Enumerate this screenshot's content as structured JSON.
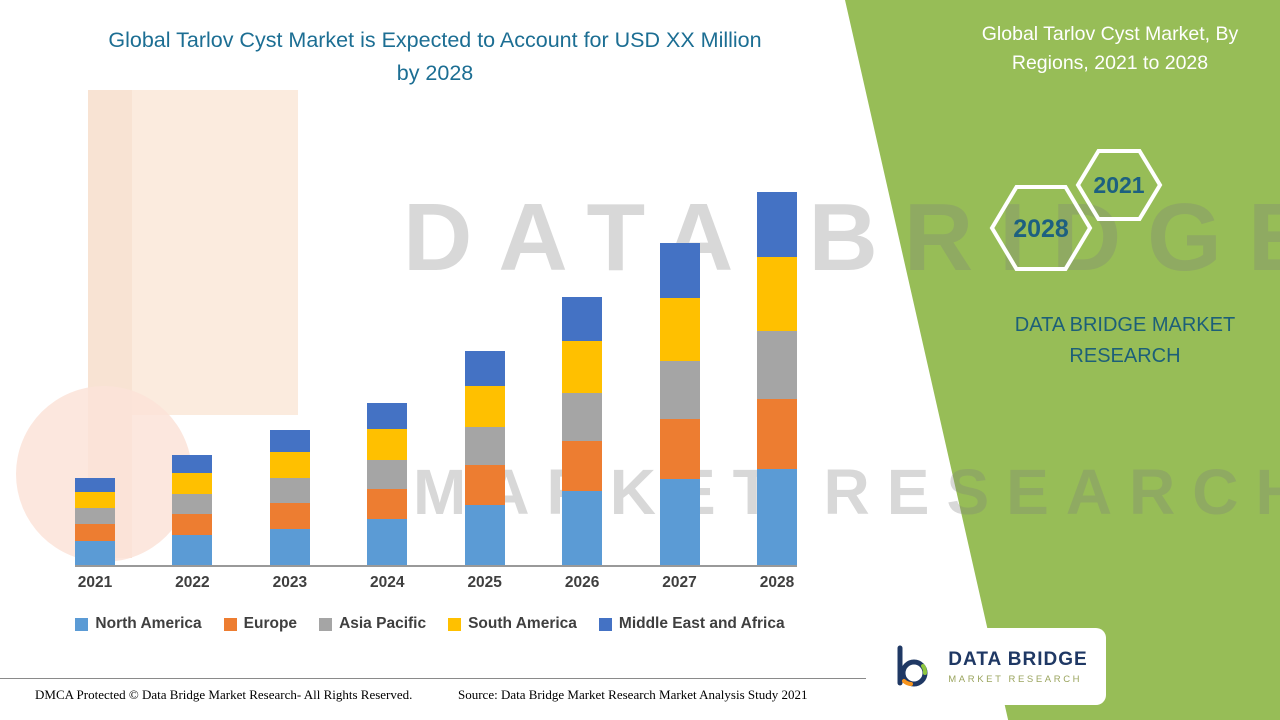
{
  "title": "Global Tarlov Cyst Market is Expected to Account for USD XX Million by 2028",
  "watermark": {
    "line1": "DATA BRIDGE",
    "line2": "MARKET RESEARCH"
  },
  "sidebar": {
    "heading": "Global Tarlov Cyst Market, By Regions, 2021 to 2028",
    "hexagons": [
      {
        "label": "2028"
      },
      {
        "label": "2021"
      }
    ],
    "brand": "DATA BRIDGE MARKET RESEARCH",
    "panel_color": "#97BD57",
    "accent_text_color": "#1D5F78"
  },
  "chart_data": {
    "type": "bar",
    "stacked": true,
    "title": "Global Tarlov Cyst Market is Expected to Account for USD XX Million by 2028",
    "categories": [
      "2021",
      "2022",
      "2023",
      "2024",
      "2025",
      "2026",
      "2027",
      "2028"
    ],
    "series": [
      {
        "name": "North America",
        "color": "#5B9BD5",
        "values": [
          24,
          30,
          36,
          46,
          60,
          74,
          86,
          96
        ]
      },
      {
        "name": "Europe",
        "color": "#ED7D31",
        "values": [
          17,
          21,
          26,
          30,
          40,
          50,
          60,
          70
        ]
      },
      {
        "name": "Asia Pacific",
        "color": "#A5A5A5",
        "values": [
          16,
          20,
          25,
          29,
          38,
          48,
          58,
          68
        ]
      },
      {
        "name": "South America",
        "color": "#FFC000",
        "values": [
          16,
          21,
          26,
          31,
          41,
          52,
          63,
          74
        ]
      },
      {
        "name": "Middle East and Africa",
        "color": "#4472C4",
        "values": [
          14,
          18,
          22,
          26,
          35,
          44,
          55,
          65
        ]
      }
    ],
    "ylim": [
      0,
      400
    ],
    "xlabel": "",
    "ylabel": "",
    "y_axis_visible": false,
    "gridlines": false,
    "legend_position": "bottom"
  },
  "footer": {
    "dmca": "DMCA Protected © Data Bridge Market Research- All Rights Reserved.",
    "source": "Source: Data Bridge Market Research Market Analysis Study 2021"
  },
  "logo": {
    "line1": "DATA BRIDGE",
    "line2": "MARKET RESEARCH"
  }
}
